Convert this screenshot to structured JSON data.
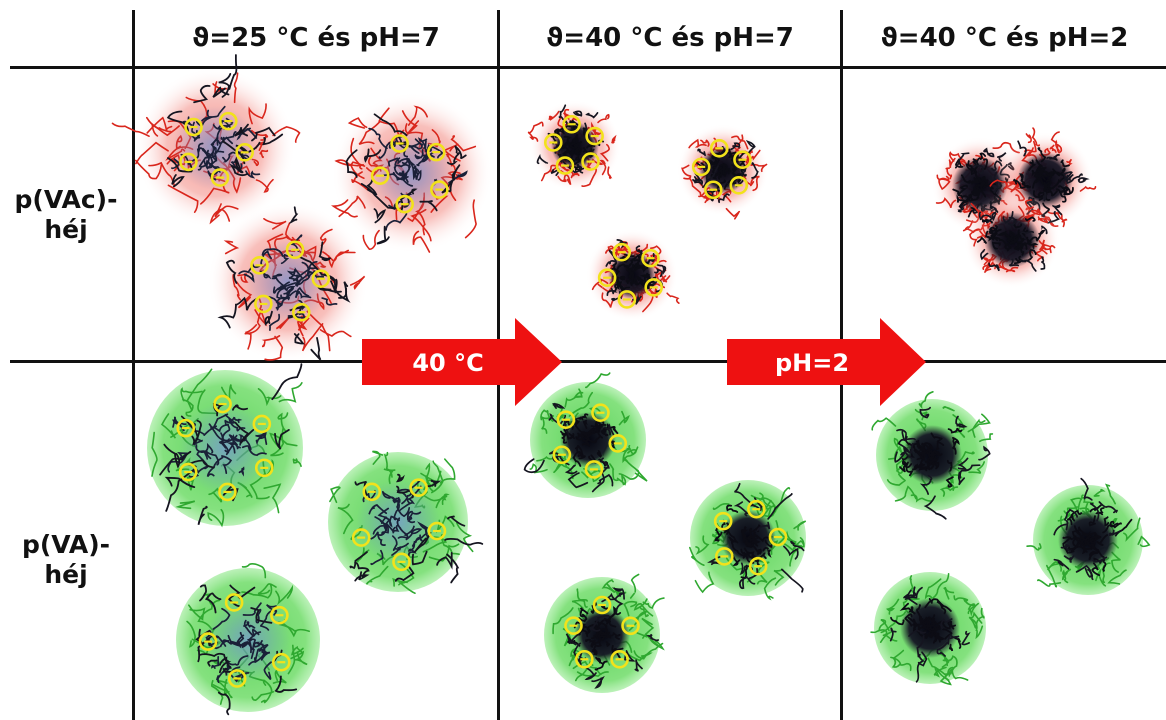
{
  "columns": [
    {
      "label": "ϑ=25 °C és pH=7"
    },
    {
      "label": "ϑ=40 °C és pH=7"
    },
    {
      "label": "ϑ=40 °C és pH=2"
    }
  ],
  "rows": [
    {
      "line1": "p(VAc)-",
      "line2": "héj"
    },
    {
      "line1": "p(VA)-",
      "line2": "héj"
    }
  ],
  "arrows": [
    {
      "label": "40 °C"
    },
    {
      "label": "pH=2"
    }
  ],
  "colors": {
    "pvac_shell": "#e8322a",
    "pva_shell": "#5fd35a",
    "core": "#1a1a2e",
    "charge": "#f2e21b",
    "arrow": "#ee1111"
  }
}
